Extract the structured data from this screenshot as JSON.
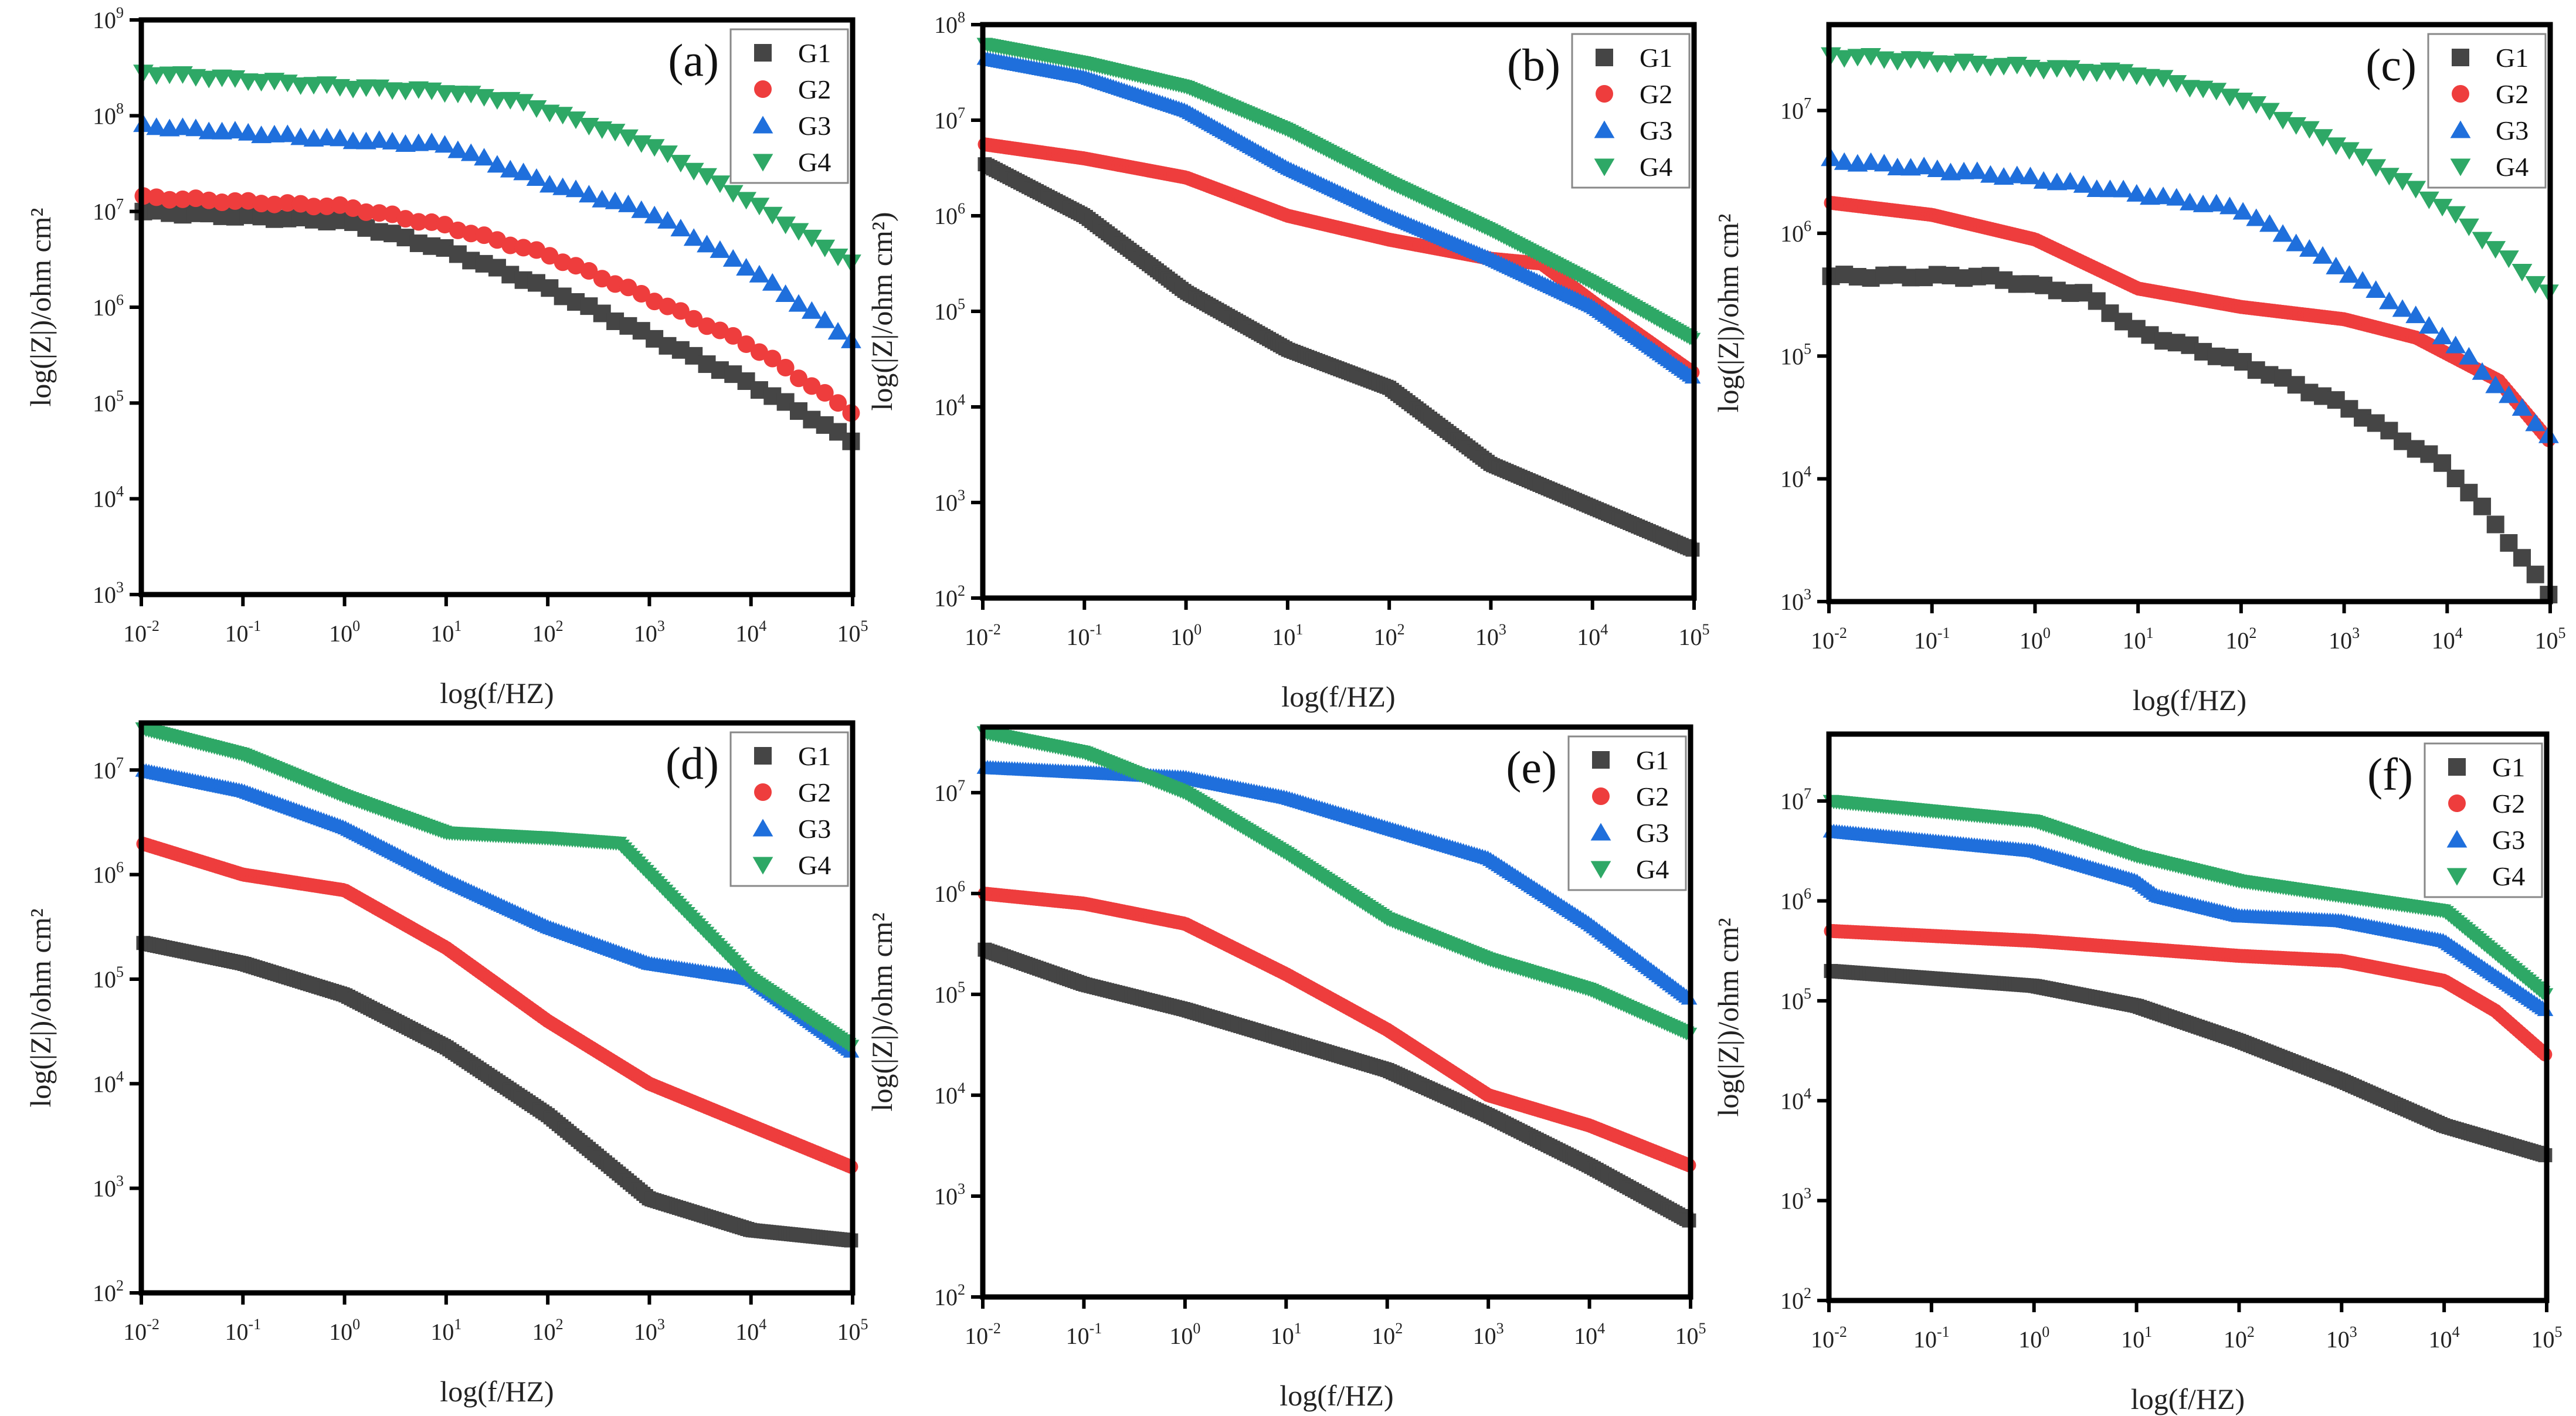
{
  "figure": {
    "tick_base": "10",
    "colors": {
      "G1": "#454545",
      "G2": "#ee3d3d",
      "G3": "#1f6fdc",
      "G4": "#2ea866"
    },
    "markers": {
      "G1": "square",
      "G2": "circle",
      "G3": "triangle-up",
      "G4": "triangle-down"
    }
  },
  "chart_data": [
    {
      "type": "scatter",
      "panel_label": "(a)",
      "xlabel": "log(f/HZ)",
      "ylabel": "log(|Z|)/ohm cm²",
      "xscale": "log",
      "yscale": "log",
      "xlim_log10": [
        -2,
        5
      ],
      "ylim_log10": [
        3,
        9
      ],
      "xticks_log10": [
        -2,
        -1,
        0,
        1,
        2,
        3,
        4,
        5
      ],
      "yticks_log10": [
        3,
        4,
        5,
        6,
        7,
        8,
        9
      ],
      "legend": [
        "G1",
        "G2",
        "G3",
        "G4"
      ],
      "legend_position": "top-right",
      "density": "sparse",
      "series": [
        {
          "name": "G1",
          "points_log10": [
            [
              -2,
              7.0
            ],
            [
              0,
              6.9
            ],
            [
              1,
              6.6
            ],
            [
              2,
              6.2
            ],
            [
              3,
              5.7
            ],
            [
              4,
              5.2
            ],
            [
              5,
              4.6
            ]
          ]
        },
        {
          "name": "G2",
          "points_log10": [
            [
              -2,
              7.15
            ],
            [
              0,
              7.05
            ],
            [
              1,
              6.85
            ],
            [
              2,
              6.55
            ],
            [
              3,
              6.1
            ],
            [
              4,
              5.6
            ],
            [
              5,
              4.9
            ]
          ]
        },
        {
          "name": "G3",
          "points_log10": [
            [
              -2,
              7.9
            ],
            [
              0,
              7.75
            ],
            [
              1,
              7.7
            ],
            [
              1.5,
              7.5
            ],
            [
              2,
              7.3
            ],
            [
              3,
              7.0
            ],
            [
              4,
              6.4
            ],
            [
              5,
              5.65
            ]
          ]
        },
        {
          "name": "G4",
          "points_log10": [
            [
              -2,
              8.45
            ],
            [
              0,
              8.3
            ],
            [
              1,
              8.25
            ],
            [
              1.7,
              8.15
            ],
            [
              2,
              8.05
            ],
            [
              3,
              7.7
            ],
            [
              4,
              7.1
            ],
            [
              5,
              6.45
            ]
          ]
        }
      ]
    },
    {
      "type": "scatter",
      "panel_label": "(b)",
      "xlabel": "log(f/HZ)",
      "ylabel": "log(|Z|/ohm cm²)",
      "xscale": "log",
      "yscale": "log",
      "xlim_log10": [
        -2,
        5
      ],
      "ylim_log10": [
        2,
        8
      ],
      "xticks_log10": [
        -2,
        -1,
        0,
        1,
        2,
        3,
        4,
        5
      ],
      "yticks_log10": [
        2,
        3,
        4,
        5,
        6,
        7,
        8
      ],
      "legend": [
        "G1",
        "G2",
        "G3",
        "G4"
      ],
      "legend_position": "top-right",
      "density": "dense",
      "series": [
        {
          "name": "G1",
          "points_log10": [
            [
              -2,
              6.55
            ],
            [
              -1,
              6.0
            ],
            [
              0,
              5.2
            ],
            [
              1,
              4.6
            ],
            [
              2,
              4.2
            ],
            [
              3,
              3.4
            ],
            [
              4,
              2.95
            ],
            [
              5,
              2.5
            ]
          ]
        },
        {
          "name": "G2",
          "points_log10": [
            [
              -2,
              6.75
            ],
            [
              -1,
              6.6
            ],
            [
              0,
              6.4
            ],
            [
              1,
              6.0
            ],
            [
              2,
              5.75
            ],
            [
              3,
              5.55
            ],
            [
              3.5,
              5.5
            ],
            [
              4,
              5.1
            ],
            [
              5,
              4.35
            ]
          ]
        },
        {
          "name": "G3",
          "points_log10": [
            [
              -2,
              7.65
            ],
            [
              -1,
              7.45
            ],
            [
              0,
              7.1
            ],
            [
              1,
              6.5
            ],
            [
              2,
              6.0
            ],
            [
              3,
              5.55
            ],
            [
              4,
              5.05
            ],
            [
              5,
              4.3
            ]
          ]
        },
        {
          "name": "G4",
          "points_log10": [
            [
              -2,
              7.8
            ],
            [
              -1,
              7.6
            ],
            [
              0,
              7.35
            ],
            [
              1,
              6.9
            ],
            [
              2,
              6.35
            ],
            [
              3,
              5.85
            ],
            [
              4,
              5.3
            ],
            [
              5,
              4.7
            ]
          ]
        }
      ]
    },
    {
      "type": "scatter",
      "panel_label": "(c)",
      "xlabel": "log(f/HZ)",
      "ylabel": "log(|Z|)/ohm cm²",
      "xscale": "log",
      "yscale": "log",
      "xlim_log10": [
        -2,
        5
      ],
      "ylim_log10": [
        3,
        7.7
      ],
      "xticks_log10": [
        -2,
        -1,
        0,
        1,
        2,
        3,
        4,
        5
      ],
      "yticks_log10": [
        3,
        4,
        5,
        6,
        7
      ],
      "legend": [
        "G1",
        "G2",
        "G3",
        "G4"
      ],
      "legend_position": "top-right",
      "density": "mixed",
      "series": [
        {
          "name": "G1",
          "points_log10": [
            [
              -2,
              5.65
            ],
            [
              -0.5,
              5.65
            ],
            [
              0.5,
              5.5
            ],
            [
              1,
              5.2
            ],
            [
              2,
              4.95
            ],
            [
              3,
              4.6
            ],
            [
              4,
              4.1
            ],
            [
              4.5,
              3.6
            ],
            [
              5,
              3.05
            ]
          ]
        },
        {
          "name": "G2",
          "points_log10": [
            [
              -2,
              6.25
            ],
            [
              -1,
              6.15
            ],
            [
              0,
              5.95
            ],
            [
              1,
              5.55
            ],
            [
              2,
              5.4
            ],
            [
              3,
              5.3
            ],
            [
              3.7,
              5.15
            ],
            [
              4.5,
              4.8
            ],
            [
              5,
              4.3
            ]
          ]
        },
        {
          "name": "G3",
          "points_log10": [
            [
              -2,
              6.6
            ],
            [
              0,
              6.45
            ],
            [
              2,
              6.2
            ],
            [
              3,
              5.7
            ],
            [
              4,
              5.15
            ],
            [
              5,
              4.35
            ]
          ]
        },
        {
          "name": "G4",
          "points_log10": [
            [
              -2,
              7.45
            ],
            [
              0,
              7.35
            ],
            [
              1,
              7.3
            ],
            [
              2,
              7.1
            ],
            [
              3,
              6.7
            ],
            [
              4,
              6.2
            ],
            [
              5,
              5.5
            ]
          ]
        }
      ]
    },
    {
      "type": "scatter",
      "panel_label": "(d)",
      "xlabel": "log(f/HZ)",
      "ylabel": "log(|Z|)/ohm cm²",
      "xscale": "log",
      "yscale": "log",
      "xlim_log10": [
        -2,
        5
      ],
      "ylim_log10": [
        2,
        7.45
      ],
      "xticks_log10": [
        -2,
        -1,
        0,
        1,
        2,
        3,
        4,
        5
      ],
      "yticks_log10": [
        2,
        3,
        4,
        5,
        6,
        7
      ],
      "legend": [
        "G1",
        "G2",
        "G3",
        "G4"
      ],
      "legend_position": "top-right",
      "density": "dense",
      "series": [
        {
          "name": "G1",
          "points_log10": [
            [
              -2,
              5.35
            ],
            [
              -1,
              5.15
            ],
            [
              0,
              4.85
            ],
            [
              1,
              4.35
            ],
            [
              2,
              3.7
            ],
            [
              3,
              2.9
            ],
            [
              4,
              2.6
            ],
            [
              5,
              2.5
            ]
          ]
        },
        {
          "name": "G2",
          "points_log10": [
            [
              -2,
              6.3
            ],
            [
              -1,
              6.0
            ],
            [
              0,
              5.85
            ],
            [
              1,
              5.3
            ],
            [
              2,
              4.6
            ],
            [
              3,
              4.0
            ],
            [
              4,
              3.6
            ],
            [
              5,
              3.2
            ]
          ]
        },
        {
          "name": "G3",
          "points_log10": [
            [
              -2,
              7.0
            ],
            [
              -1,
              6.8
            ],
            [
              0,
              6.45
            ],
            [
              1,
              5.95
            ],
            [
              2,
              5.5
            ],
            [
              3,
              5.15
            ],
            [
              4,
              5.0
            ],
            [
              5,
              4.3
            ]
          ]
        },
        {
          "name": "G4",
          "points_log10": [
            [
              -2,
              7.4
            ],
            [
              -1,
              7.15
            ],
            [
              0,
              6.75
            ],
            [
              1,
              6.4
            ],
            [
              2,
              6.35
            ],
            [
              2.7,
              6.3
            ],
            [
              3,
              6.0
            ],
            [
              4,
              5.0
            ],
            [
              5,
              4.35
            ]
          ]
        }
      ]
    },
    {
      "type": "scatter",
      "panel_label": "(e)",
      "xlabel": "log(f/HZ)",
      "ylabel": "log(|Z|)/ohm cm²",
      "xscale": "log",
      "yscale": "log",
      "xlim_log10": [
        -2,
        5
      ],
      "ylim_log10": [
        2,
        7.65
      ],
      "xticks_log10": [
        -2,
        -1,
        0,
        1,
        2,
        3,
        4,
        5
      ],
      "yticks_log10": [
        2,
        3,
        4,
        5,
        6,
        7
      ],
      "legend": [
        "G1",
        "G2",
        "G3",
        "G4"
      ],
      "legend_position": "top-right",
      "density": "dense",
      "series": [
        {
          "name": "G1",
          "points_log10": [
            [
              -2,
              5.45
            ],
            [
              -1,
              5.1
            ],
            [
              0,
              4.85
            ],
            [
              1,
              4.55
            ],
            [
              2,
              4.25
            ],
            [
              3,
              3.8
            ],
            [
              4,
              3.3
            ],
            [
              5,
              2.75
            ]
          ]
        },
        {
          "name": "G2",
          "points_log10": [
            [
              -2,
              6.0
            ],
            [
              -1,
              5.9
            ],
            [
              0,
              5.7
            ],
            [
              1,
              5.2
            ],
            [
              2,
              4.65
            ],
            [
              3,
              4.0
            ],
            [
              4,
              3.7
            ],
            [
              5,
              3.3
            ]
          ]
        },
        {
          "name": "G3",
          "points_log10": [
            [
              -2,
              7.25
            ],
            [
              0,
              7.15
            ],
            [
              1,
              6.95
            ],
            [
              2,
              6.65
            ],
            [
              3,
              6.35
            ],
            [
              4,
              5.7
            ],
            [
              5,
              4.95
            ]
          ]
        },
        {
          "name": "G4",
          "points_log10": [
            [
              -2,
              7.6
            ],
            [
              -1,
              7.4
            ],
            [
              0,
              7.0
            ],
            [
              1,
              6.4
            ],
            [
              2,
              5.75
            ],
            [
              3,
              5.35
            ],
            [
              4,
              5.05
            ],
            [
              5,
              4.6
            ]
          ]
        }
      ]
    },
    {
      "type": "scatter",
      "panel_label": "(f)",
      "xlabel": "log(f/HZ)",
      "ylabel": "log(|Z|)/ohm cm²",
      "xscale": "log",
      "yscale": "log",
      "xlim_log10": [
        -2,
        5
      ],
      "ylim_log10": [
        2,
        7.67
      ],
      "xticks_log10": [
        -2,
        -1,
        0,
        1,
        2,
        3,
        4,
        5
      ],
      "yticks_log10": [
        2,
        3,
        4,
        5,
        6,
        7
      ],
      "legend": [
        "G1",
        "G2",
        "G3",
        "G4"
      ],
      "legend_position": "top-right",
      "density": "dense",
      "series": [
        {
          "name": "G1",
          "points_log10": [
            [
              -2,
              5.3
            ],
            [
              0,
              5.15
            ],
            [
              1,
              4.95
            ],
            [
              2,
              4.6
            ],
            [
              3,
              4.2
            ],
            [
              4,
              3.75
            ],
            [
              5,
              3.45
            ]
          ]
        },
        {
          "name": "G2",
          "points_log10": [
            [
              -2,
              5.7
            ],
            [
              0,
              5.6
            ],
            [
              2,
              5.45
            ],
            [
              3,
              5.4
            ],
            [
              4,
              5.2
            ],
            [
              4.5,
              4.9
            ],
            [
              5,
              4.45
            ]
          ]
        },
        {
          "name": "G3",
          "points_log10": [
            [
              -2,
              6.7
            ],
            [
              0,
              6.5
            ],
            [
              1,
              6.2
            ],
            [
              1.2,
              6.05
            ],
            [
              2,
              5.85
            ],
            [
              3,
              5.8
            ],
            [
              4,
              5.6
            ],
            [
              5,
              4.9
            ]
          ]
        },
        {
          "name": "G4",
          "points_log10": [
            [
              -2,
              7.0
            ],
            [
              0,
              6.8
            ],
            [
              1,
              6.45
            ],
            [
              2,
              6.2
            ],
            [
              3,
              6.05
            ],
            [
              4,
              5.9
            ],
            [
              5,
              5.05
            ]
          ]
        }
      ]
    }
  ]
}
